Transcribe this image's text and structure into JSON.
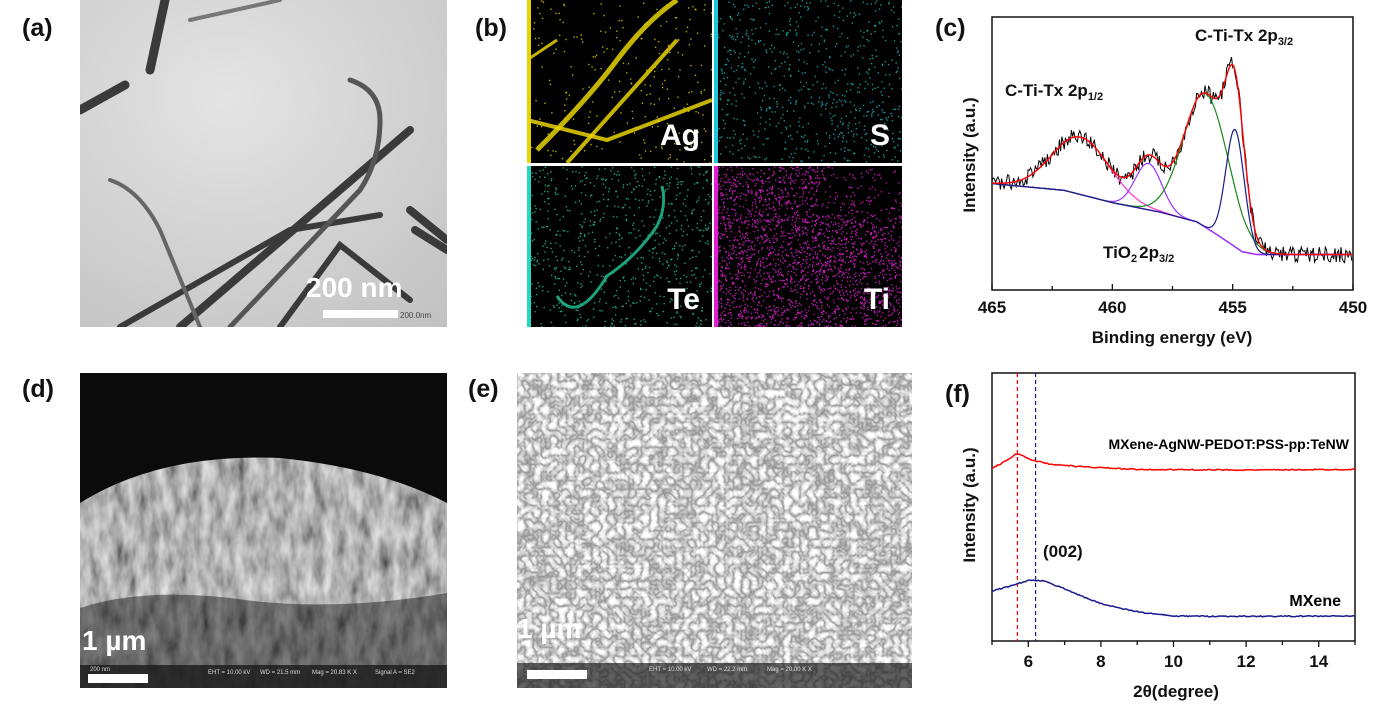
{
  "panels": {
    "a": {
      "label": "(a)",
      "scale_text": "200 nm",
      "scale_small": "200.0nm"
    },
    "b": {
      "label": "(b)",
      "maps": [
        {
          "element": "Ag",
          "color": "#e6d400"
        },
        {
          "element": "S",
          "color": "#1fb8b8"
        },
        {
          "element": "Te",
          "color": "#22c89a"
        },
        {
          "element": "Ti",
          "color": "#e020d0"
        }
      ]
    },
    "c": {
      "label": "(c)"
    },
    "d": {
      "label": "(d)",
      "scale_text": "1 µm",
      "info": {
        "scale": "200 nm",
        "eht": "EHT = 10.00 kV",
        "wd": "WD = 21.5 mm",
        "mag": "Mag = 20.83 K X",
        "signal": "Signal A = SE2"
      }
    },
    "e": {
      "label": "(e)",
      "scale_text": "1 µm",
      "info": {
        "eht": "EHT = 10.00 kV",
        "wd": "WD = 22.2 mm",
        "mag": "Mag = 20.00 K X"
      }
    },
    "f": {
      "label": "(f)"
    }
  },
  "chart_data": [
    {
      "panel": "c",
      "type": "line",
      "xlabel": "Binding energy (eV)",
      "ylabel": "Intensity (a.u.)",
      "xlim": [
        465,
        450
      ],
      "x_reversed": true,
      "xticks": [
        465,
        460,
        455,
        450
      ],
      "ylim": [
        0,
        100
      ],
      "yticks_shown": false,
      "background": {
        "color": "#8a2be2",
        "points": [
          [
            465,
            39
          ],
          [
            462,
            36.5
          ],
          [
            460,
            32
          ],
          [
            458,
            28.5
          ],
          [
            456.5,
            25
          ],
          [
            455.6,
            20
          ],
          [
            454.6,
            14
          ],
          [
            454,
            13
          ],
          [
            450,
            13
          ]
        ]
      },
      "components": [
        {
          "name": "C-Ti-Tx 2p1/2",
          "center": 461.3,
          "height": 21,
          "fwhm": 2.8,
          "color": "#ff33cc"
        },
        {
          "name": "TiO2 2p3/2",
          "center": 458.5,
          "height": 17,
          "fwhm": 1.3,
          "color": "#9933ff"
        },
        {
          "name": "C-Ti-Tx 2p3/2 (green)",
          "center": 456.1,
          "height": 49,
          "fwhm": 2.2,
          "color": "#1a8a1a"
        },
        {
          "name": "C-Ti-Tx 2p3/2 (blue)",
          "center": 454.9,
          "height": 43,
          "fwhm": 0.9,
          "color": "#1a1a8c"
        }
      ],
      "envelope_color": "#ff0000",
      "raw_color": "#000000",
      "annotations": [
        {
          "text": "C-Ti-Tx 2p",
          "sub": "1/2"
        },
        {
          "text": "C-Ti-Tx 2p",
          "sub": "3/2"
        },
        {
          "text": "TiO",
          "sub": "2",
          "text2": "2p",
          "sub2": "3/2"
        }
      ]
    },
    {
      "panel": "f",
      "type": "line",
      "xlabel": "2θ(degree)",
      "ylabel": "Intensity (a.u.)",
      "xlim": [
        5,
        15
      ],
      "xticks": [
        6,
        8,
        10,
        12,
        14
      ],
      "ylim": [
        0,
        100
      ],
      "yticks_shown": false,
      "series": [
        {
          "name": "MXene-AgNW-PEDOT:PSS-pp:TeNW",
          "color": "#ff0000",
          "points": [
            [
              5,
              64.5
            ],
            [
              5.3,
              66.5
            ],
            [
              5.7,
              70
            ],
            [
              6.1,
              67.5
            ],
            [
              6.6,
              66
            ],
            [
              7.5,
              65
            ],
            [
              9,
              64
            ],
            [
              12,
              63.8
            ],
            [
              15,
              64
            ]
          ]
        },
        {
          "name": "MXene",
          "color": "#1a1a8c",
          "points": [
            [
              5,
              18.7
            ],
            [
              5.5,
              20.5
            ],
            [
              6.0,
              22.6
            ],
            [
              6.4,
              22.5
            ],
            [
              7,
              19.5
            ],
            [
              7.6,
              16
            ],
            [
              8,
              14
            ],
            [
              8.6,
              12
            ],
            [
              9.2,
              10.5
            ],
            [
              10,
              9.3
            ],
            [
              12,
              9.2
            ],
            [
              15,
              9.3
            ]
          ]
        }
      ],
      "reference_lines": [
        {
          "x": 5.7,
          "color": "#ff0000"
        },
        {
          "x": 6.2,
          "color": "#1a1a8c"
        }
      ],
      "annotations": [
        {
          "text": "(002)"
        }
      ]
    }
  ]
}
